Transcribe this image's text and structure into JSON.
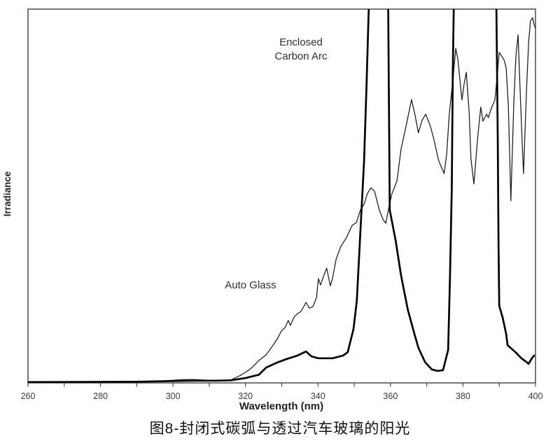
{
  "figure": {
    "caption": "图8-封闭式碳弧与透过汽车玻璃的阳光"
  },
  "chart_data": {
    "type": "line",
    "title": "",
    "xlabel": "Wavelength (nm)",
    "ylabel": "Irradiance",
    "xlim": [
      260,
      400
    ],
    "ylim": [
      0,
      1
    ],
    "x_major_ticks": [
      260,
      280,
      300,
      320,
      340,
      360,
      380,
      400
    ],
    "x_minor_tick_step": 10,
    "y_tick_labels": "none (irradiance in arbitrary units)",
    "grid": false,
    "frame": true,
    "legend_position": "inline-annotations",
    "annotations": [
      {
        "id": "enclosed-carbon-arc-label",
        "lines": [
          "Enclosed",
          "Carbon Arc"
        ],
        "x_nm": 335.3,
        "y_rel": 0.903,
        "for_series": "Enclosed Carbon Arc"
      },
      {
        "id": "auto-glass-label",
        "lines": [
          "Auto Glass"
        ],
        "x_nm": 321.4,
        "y_rel": 0.253,
        "for_series": "Sunlight Through Auto Glass"
      }
    ],
    "series": [
      {
        "name": "Sunlight Through Auto Glass",
        "dom_id": "auto-glass-curve",
        "style": "thin",
        "stroke_width": 1.25,
        "color": "#1a1a1a",
        "points": [
          [
            260,
            0.002
          ],
          [
            280,
            0.003
          ],
          [
            295,
            0.004
          ],
          [
            300,
            0.007
          ],
          [
            303,
            0.009
          ],
          [
            306,
            0.009
          ],
          [
            310,
            0.007
          ],
          [
            314,
            0.006
          ],
          [
            316,
            0.008
          ],
          [
            318,
            0.017
          ],
          [
            320,
            0.028
          ],
          [
            321.8,
            0.041
          ],
          [
            323.7,
            0.06
          ],
          [
            325.7,
            0.075
          ],
          [
            327.6,
            0.101
          ],
          [
            328.9,
            0.12
          ],
          [
            329.9,
            0.139
          ],
          [
            330.9,
            0.148
          ],
          [
            331.8,
            0.167
          ],
          [
            332.4,
            0.154
          ],
          [
            333.4,
            0.176
          ],
          [
            334.3,
            0.185
          ],
          [
            335.3,
            0.191
          ],
          [
            336.7,
            0.215
          ],
          [
            337.6,
            0.2
          ],
          [
            338.6,
            0.204
          ],
          [
            339.6,
            0.228
          ],
          [
            340.1,
            0.279
          ],
          [
            340.7,
            0.262
          ],
          [
            341.5,
            0.285
          ],
          [
            342.4,
            0.307
          ],
          [
            343.4,
            0.26
          ],
          [
            344.0,
            0.279
          ],
          [
            345.0,
            0.331
          ],
          [
            346.3,
            0.365
          ],
          [
            347.8,
            0.388
          ],
          [
            349.4,
            0.421
          ],
          [
            350.6,
            0.429
          ],
          [
            351.7,
            0.463
          ],
          [
            352.7,
            0.478
          ],
          [
            353.6,
            0.506
          ],
          [
            354.6,
            0.522
          ],
          [
            355.6,
            0.513
          ],
          [
            356.9,
            0.463
          ],
          [
            357.9,
            0.438
          ],
          [
            358.7,
            0.427
          ],
          [
            359.6,
            0.472
          ],
          [
            360.4,
            0.506
          ],
          [
            361.8,
            0.541
          ],
          [
            362.9,
            0.625
          ],
          [
            364.3,
            0.687
          ],
          [
            365.8,
            0.758
          ],
          [
            366.8,
            0.715
          ],
          [
            367.7,
            0.669
          ],
          [
            368.7,
            0.702
          ],
          [
            369.7,
            0.719
          ],
          [
            371.0,
            0.687
          ],
          [
            372.0,
            0.65
          ],
          [
            373.3,
            0.594
          ],
          [
            374.8,
            0.56
          ],
          [
            375.5,
            0.612
          ],
          [
            376.2,
            0.719
          ],
          [
            377.2,
            0.809
          ],
          [
            378.0,
            0.895
          ],
          [
            378.6,
            0.865
          ],
          [
            379.7,
            0.757
          ],
          [
            380.3,
            0.8
          ],
          [
            380.9,
            0.831
          ],
          [
            381.7,
            0.725
          ],
          [
            382.2,
            0.599
          ],
          [
            383.0,
            0.532
          ],
          [
            384.0,
            0.65
          ],
          [
            384.9,
            0.738
          ],
          [
            385.5,
            0.7
          ],
          [
            386.5,
            0.719
          ],
          [
            387.0,
            0.71
          ],
          [
            387.8,
            0.734
          ],
          [
            388.8,
            0.757
          ],
          [
            389.4,
            0.818
          ],
          [
            390.0,
            0.884
          ],
          [
            390.7,
            0.874
          ],
          [
            391.3,
            0.865
          ],
          [
            391.9,
            0.843
          ],
          [
            392.5,
            0.743
          ],
          [
            393.2,
            0.487
          ],
          [
            394.0,
            0.743
          ],
          [
            394.6,
            0.874
          ],
          [
            395.2,
            0.931
          ],
          [
            395.7,
            0.8
          ],
          [
            396.3,
            0.65
          ],
          [
            396.7,
            0.56
          ],
          [
            397.5,
            0.781
          ],
          [
            398.1,
            0.912
          ],
          [
            398.6,
            0.968
          ],
          [
            399.2,
            0.977
          ],
          [
            399.6,
            0.959
          ],
          [
            400,
            0.949
          ]
        ]
      },
      {
        "name": "Enclosed Carbon Arc",
        "dom_id": "carbon-arc-curve",
        "style": "thick",
        "stroke_width": 2.7,
        "color": "#000000",
        "clipped_note": "values of 1.1 run off the top of the plot (off-scale emission bands at ~354-359 nm and ~377-389 nm)",
        "points": [
          [
            260,
            0.002
          ],
          [
            290,
            0.003
          ],
          [
            300,
            0.005
          ],
          [
            306,
            0.006
          ],
          [
            312,
            0.006
          ],
          [
            316,
            0.007
          ],
          [
            320,
            0.013
          ],
          [
            323.7,
            0.022
          ],
          [
            325.7,
            0.041
          ],
          [
            328.6,
            0.054
          ],
          [
            331.4,
            0.064
          ],
          [
            334.3,
            0.073
          ],
          [
            336.7,
            0.084
          ],
          [
            338.2,
            0.071
          ],
          [
            340.1,
            0.066
          ],
          [
            344.0,
            0.066
          ],
          [
            346.9,
            0.073
          ],
          [
            348.2,
            0.082
          ],
          [
            349.8,
            0.144
          ],
          [
            350.7,
            0.219
          ],
          [
            351.7,
            0.406
          ],
          [
            352.7,
            0.594
          ],
          [
            353.4,
            0.8
          ],
          [
            354.3,
            1.1
          ],
          [
            359.3,
            1.1
          ],
          [
            359.8,
            0.462
          ],
          [
            361.4,
            0.382
          ],
          [
            362.9,
            0.288
          ],
          [
            364.8,
            0.195
          ],
          [
            366.6,
            0.131
          ],
          [
            367.7,
            0.094
          ],
          [
            369.5,
            0.056
          ],
          [
            371.4,
            0.036
          ],
          [
            373.0,
            0.032
          ],
          [
            374.5,
            0.034
          ],
          [
            375.9,
            0.088
          ],
          [
            376.4,
            0.28
          ],
          [
            376.9,
            0.52
          ],
          [
            377.2,
            0.837
          ],
          [
            377.6,
            1.1
          ],
          [
            389.1,
            1.1
          ],
          [
            389.6,
            0.65
          ],
          [
            389.8,
            0.369
          ],
          [
            390.0,
            0.206
          ],
          [
            390.9,
            0.176
          ],
          [
            391.9,
            0.131
          ],
          [
            392.3,
            0.101
          ],
          [
            393.8,
            0.088
          ],
          [
            394.8,
            0.079
          ],
          [
            396.1,
            0.066
          ],
          [
            397.5,
            0.056
          ],
          [
            398.1,
            0.051
          ],
          [
            399.0,
            0.066
          ],
          [
            399.6,
            0.073
          ]
        ]
      }
    ]
  }
}
